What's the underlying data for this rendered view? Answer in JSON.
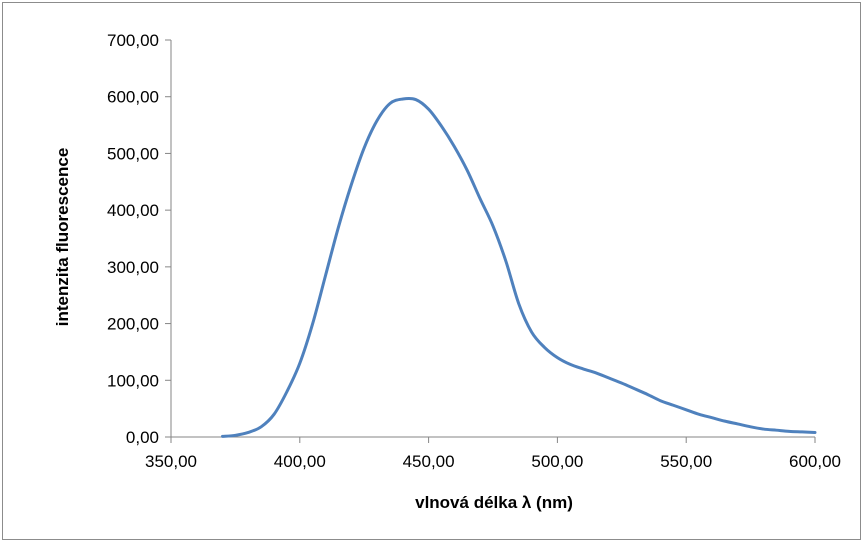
{
  "chart_data": {
    "type": "line",
    "title": "",
    "xlabel": "vlnová délka λ (nm)",
    "ylabel": "intenzita fluorescence",
    "xlim": [
      350,
      600
    ],
    "ylim": [
      0,
      700
    ],
    "x_ticks": [
      "350,00",
      "400,00",
      "450,00",
      "500,00",
      "550,00",
      "600,00"
    ],
    "y_ticks": [
      "0,00",
      "100,00",
      "200,00",
      "300,00",
      "400,00",
      "500,00",
      "600,00",
      "700,00"
    ],
    "x_tick_values": [
      350,
      400,
      450,
      500,
      550,
      600
    ],
    "y_tick_values": [
      0,
      100,
      200,
      300,
      400,
      500,
      600,
      700
    ],
    "grid": false,
    "legend": "none",
    "series": [
      {
        "color": "#4f81bd",
        "x": [
          370,
          375,
          380,
          385,
          390,
          395,
          400,
          405,
          410,
          415,
          420,
          425,
          430,
          435,
          440,
          445,
          450,
          455,
          460,
          465,
          470,
          475,
          480,
          485,
          490,
          495,
          500,
          505,
          510,
          515,
          520,
          525,
          530,
          535,
          540,
          545,
          550,
          555,
          560,
          565,
          570,
          575,
          580,
          585,
          590,
          595,
          600
        ],
        "y": [
          1,
          3,
          8,
          18,
          40,
          80,
          130,
          200,
          285,
          370,
          445,
          510,
          558,
          588,
          596,
          595,
          578,
          548,
          512,
          470,
          420,
          372,
          310,
          235,
          185,
          158,
          140,
          128,
          120,
          113,
          104,
          95,
          85,
          75,
          64,
          56,
          48,
          40,
          34,
          28,
          23,
          18,
          14,
          12,
          10,
          9,
          8
        ]
      }
    ]
  }
}
